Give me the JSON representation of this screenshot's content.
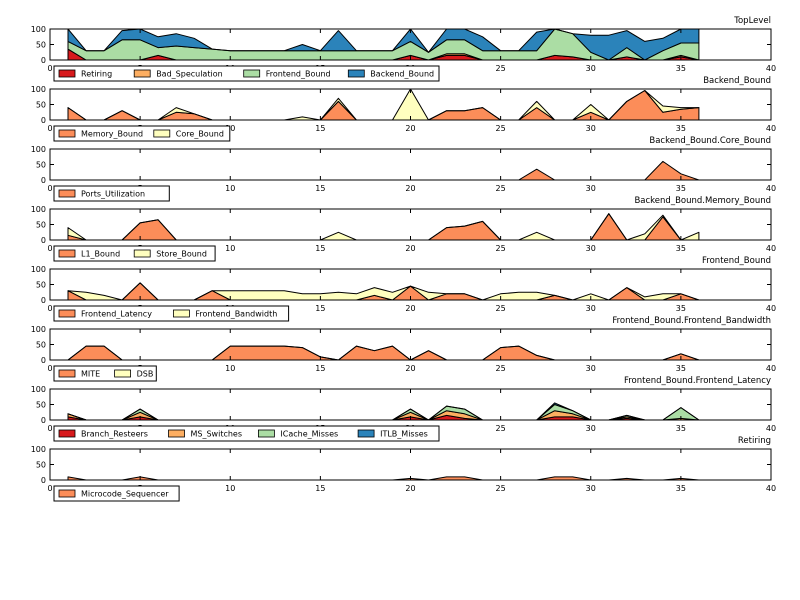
{
  "figure": {
    "x_ticks": [
      0,
      5,
      10,
      15,
      20,
      25,
      30,
      35,
      40
    ],
    "y_ticks": [
      0,
      50,
      100
    ],
    "xlim": [
      0,
      40
    ],
    "ylim": [
      0,
      100
    ]
  },
  "palette": {
    "Retiring": "#d7191c",
    "Bad_Speculation": "#fdae61",
    "Frontend_Bound": "#abdda4",
    "Backend_Bound": "#2b83ba",
    "Memory_Bound": "#fc8d59",
    "Core_Bound": "#ffffbf",
    "Ports_Utilization": "#fc8d59",
    "L1_Bound": "#fc8d59",
    "Store_Bound": "#ffffbf",
    "Frontend_Latency": "#fc8d59",
    "Frontend_Bandwidth": "#ffffbf",
    "MITE": "#fc8d59",
    "DSB": "#ffffbf",
    "Branch_Resteers": "#d7191c",
    "MS_Switches": "#fdae61",
    "ICache_Misses": "#abdda4",
    "ITLB_Misses": "#2b83ba",
    "Microcode_Sequencer": "#fc8d59"
  },
  "chart_data": [
    {
      "type": "area",
      "title": "TopLevel",
      "xlim": [
        0,
        40
      ],
      "ylim": [
        0,
        100
      ],
      "x": [
        1,
        2,
        3,
        4,
        5,
        6,
        7,
        8,
        9,
        10,
        11,
        12,
        13,
        14,
        15,
        16,
        17,
        18,
        19,
        20,
        21,
        22,
        23,
        24,
        25,
        26,
        27,
        28,
        29,
        30,
        31,
        32,
        33,
        34,
        35,
        36
      ],
      "legend_columns": 4,
      "series": [
        {
          "name": "Retiring",
          "values": [
            35,
            0,
            0,
            0,
            0,
            15,
            0,
            0,
            0,
            0,
            0,
            0,
            0,
            0,
            0,
            0,
            0,
            0,
            0,
            15,
            0,
            15,
            15,
            0,
            0,
            0,
            0,
            15,
            10,
            0,
            0,
            10,
            0,
            0,
            10,
            0
          ]
        },
        {
          "name": "Bad_Speculation",
          "values": [
            0,
            0,
            0,
            0,
            0,
            0,
            0,
            0,
            0,
            0,
            0,
            0,
            0,
            0,
            0,
            0,
            0,
            0,
            0,
            0,
            0,
            5,
            5,
            0,
            0,
            0,
            0,
            0,
            0,
            0,
            0,
            0,
            0,
            0,
            5,
            0
          ]
        },
        {
          "name": "Frontend_Bound",
          "values": [
            25,
            30,
            30,
            65,
            65,
            25,
            45,
            40,
            35,
            30,
            30,
            30,
            30,
            30,
            30,
            30,
            30,
            30,
            30,
            45,
            25,
            45,
            45,
            30,
            30,
            30,
            30,
            85,
            75,
            25,
            0,
            30,
            0,
            30,
            40,
            55
          ]
        },
        {
          "name": "Backend_Bound",
          "values": [
            40,
            0,
            0,
            30,
            35,
            35,
            40,
            30,
            0,
            0,
            0,
            0,
            0,
            20,
            0,
            65,
            0,
            0,
            0,
            40,
            0,
            35,
            35,
            45,
            0,
            0,
            60,
            0,
            0,
            55,
            80,
            55,
            60,
            40,
            45,
            45
          ]
        }
      ]
    },
    {
      "type": "area",
      "title": "Backend_Bound",
      "xlim": [
        0,
        40
      ],
      "ylim": [
        0,
        100
      ],
      "x": [
        1,
        2,
        3,
        4,
        5,
        6,
        7,
        8,
        9,
        10,
        11,
        12,
        13,
        14,
        15,
        16,
        17,
        18,
        19,
        20,
        21,
        22,
        23,
        24,
        25,
        26,
        27,
        28,
        29,
        30,
        31,
        32,
        33,
        34,
        35,
        36
      ],
      "legend_columns": 2,
      "series": [
        {
          "name": "Memory_Bound",
          "values": [
            40,
            0,
            0,
            30,
            0,
            0,
            25,
            20,
            0,
            0,
            0,
            0,
            0,
            0,
            0,
            60,
            0,
            0,
            0,
            0,
            0,
            30,
            30,
            40,
            0,
            0,
            40,
            0,
            0,
            25,
            0,
            60,
            95,
            25,
            35,
            40
          ]
        },
        {
          "name": "Core_Bound",
          "values": [
            0,
            0,
            0,
            0,
            0,
            0,
            15,
            0,
            0,
            0,
            0,
            0,
            0,
            10,
            0,
            10,
            0,
            0,
            0,
            100,
            0,
            0,
            0,
            0,
            0,
            0,
            20,
            0,
            0,
            25,
            0,
            0,
            0,
            20,
            5,
            0
          ]
        }
      ]
    },
    {
      "type": "area",
      "title": "Backend_Bound.Core_Bound",
      "xlim": [
        0,
        40
      ],
      "ylim": [
        0,
        100
      ],
      "x": [
        1,
        2,
        3,
        4,
        5,
        6,
        7,
        8,
        9,
        10,
        11,
        12,
        13,
        14,
        15,
        16,
        17,
        18,
        19,
        20,
        21,
        22,
        23,
        24,
        25,
        26,
        27,
        28,
        29,
        30,
        31,
        32,
        33,
        34,
        35,
        36
      ],
      "legend_columns": 1,
      "series": [
        {
          "name": "Ports_Utilization",
          "values": [
            0,
            0,
            0,
            0,
            0,
            0,
            0,
            0,
            0,
            0,
            0,
            0,
            0,
            0,
            0,
            0,
            0,
            0,
            0,
            0,
            0,
            0,
            0,
            0,
            0,
            0,
            35,
            0,
            0,
            0,
            0,
            0,
            0,
            60,
            20,
            0
          ]
        }
      ]
    },
    {
      "type": "area",
      "title": "Backend_Bound.Memory_Bound",
      "xlim": [
        0,
        40
      ],
      "ylim": [
        0,
        100
      ],
      "x": [
        1,
        2,
        3,
        4,
        5,
        6,
        7,
        8,
        9,
        10,
        11,
        12,
        13,
        14,
        15,
        16,
        17,
        18,
        19,
        20,
        21,
        22,
        23,
        24,
        25,
        26,
        27,
        28,
        29,
        30,
        31,
        32,
        33,
        34,
        35,
        36
      ],
      "legend_columns": 2,
      "series": [
        {
          "name": "L1_Bound",
          "values": [
            15,
            0,
            0,
            0,
            55,
            65,
            0,
            0,
            0,
            0,
            0,
            0,
            0,
            0,
            0,
            0,
            0,
            0,
            0,
            0,
            0,
            40,
            45,
            60,
            0,
            0,
            0,
            0,
            0,
            0,
            85,
            0,
            0,
            75,
            0,
            0
          ]
        },
        {
          "name": "Store_Bound",
          "values": [
            25,
            0,
            0,
            0,
            0,
            0,
            0,
            0,
            0,
            0,
            0,
            0,
            0,
            0,
            0,
            25,
            0,
            0,
            0,
            0,
            0,
            0,
            0,
            0,
            0,
            0,
            25,
            0,
            0,
            0,
            0,
            0,
            20,
            5,
            0,
            25
          ]
        }
      ]
    },
    {
      "type": "area",
      "title": "Frontend_Bound",
      "xlim": [
        0,
        40
      ],
      "ylim": [
        0,
        100
      ],
      "x": [
        1,
        2,
        3,
        4,
        5,
        6,
        7,
        8,
        9,
        10,
        11,
        12,
        13,
        14,
        15,
        16,
        17,
        18,
        19,
        20,
        21,
        22,
        23,
        24,
        25,
        26,
        27,
        28,
        29,
        30,
        31,
        32,
        33,
        34,
        35,
        36
      ],
      "legend_columns": 2,
      "series": [
        {
          "name": "Frontend_Latency",
          "values": [
            30,
            0,
            0,
            0,
            55,
            0,
            0,
            0,
            30,
            0,
            0,
            0,
            0,
            0,
            0,
            0,
            0,
            15,
            0,
            45,
            0,
            20,
            20,
            0,
            0,
            0,
            0,
            15,
            0,
            0,
            0,
            40,
            0,
            0,
            20,
            0
          ]
        },
        {
          "name": "Frontend_Bandwidth",
          "values": [
            0,
            25,
            15,
            0,
            0,
            0,
            0,
            0,
            0,
            30,
            30,
            30,
            30,
            20,
            20,
            25,
            20,
            25,
            25,
            0,
            25,
            0,
            0,
            0,
            20,
            25,
            25,
            0,
            0,
            20,
            0,
            0,
            10,
            20,
            0,
            0
          ]
        }
      ]
    },
    {
      "type": "area",
      "title": "Frontend_Bound.Frontend_Bandwidth",
      "xlim": [
        0,
        40
      ],
      "ylim": [
        0,
        100
      ],
      "x": [
        1,
        2,
        3,
        4,
        5,
        6,
        7,
        8,
        9,
        10,
        11,
        12,
        13,
        14,
        15,
        16,
        17,
        18,
        19,
        20,
        21,
        22,
        23,
        24,
        25,
        26,
        27,
        28,
        29,
        30,
        31,
        32,
        33,
        34,
        35,
        36
      ],
      "legend_columns": 2,
      "series": [
        {
          "name": "MITE",
          "values": [
            0,
            45,
            45,
            0,
            0,
            0,
            0,
            0,
            0,
            45,
            45,
            45,
            45,
            40,
            10,
            0,
            45,
            30,
            45,
            0,
            30,
            0,
            0,
            0,
            40,
            45,
            15,
            0,
            0,
            0,
            0,
            0,
            0,
            0,
            20,
            0
          ]
        },
        {
          "name": "DSB",
          "values": [
            0,
            0,
            0,
            0,
            0,
            0,
            0,
            0,
            0,
            0,
            0,
            0,
            0,
            0,
            0,
            0,
            0,
            0,
            0,
            0,
            0,
            0,
            0,
            0,
            0,
            0,
            0,
            0,
            0,
            0,
            0,
            0,
            0,
            0,
            0,
            0
          ]
        }
      ]
    },
    {
      "type": "area",
      "title": "Frontend_Bound.Frontend_Latency",
      "xlim": [
        0,
        40
      ],
      "ylim": [
        0,
        100
      ],
      "x": [
        1,
        2,
        3,
        4,
        5,
        6,
        7,
        8,
        9,
        10,
        11,
        12,
        13,
        14,
        15,
        16,
        17,
        18,
        19,
        20,
        21,
        22,
        23,
        24,
        25,
        26,
        27,
        28,
        29,
        30,
        31,
        32,
        33,
        34,
        35,
        36
      ],
      "legend_columns": 4,
      "series": [
        {
          "name": "Branch_Resteers",
          "values": [
            10,
            0,
            0,
            0,
            10,
            0,
            0,
            0,
            0,
            0,
            0,
            0,
            0,
            0,
            0,
            0,
            0,
            0,
            0,
            10,
            0,
            15,
            5,
            0,
            0,
            0,
            0,
            10,
            10,
            0,
            0,
            5,
            0,
            0,
            0,
            0
          ]
        },
        {
          "name": "MS_Switches",
          "values": [
            10,
            0,
            0,
            0,
            15,
            0,
            0,
            0,
            0,
            0,
            0,
            0,
            0,
            0,
            0,
            0,
            0,
            0,
            0,
            15,
            0,
            15,
            15,
            0,
            0,
            0,
            0,
            20,
            10,
            0,
            0,
            5,
            0,
            0,
            5,
            0
          ]
        },
        {
          "name": "ICache_Misses",
          "values": [
            0,
            0,
            0,
            0,
            10,
            0,
            0,
            0,
            0,
            0,
            0,
            0,
            0,
            0,
            0,
            0,
            0,
            0,
            0,
            10,
            0,
            15,
            15,
            0,
            0,
            0,
            0,
            20,
            10,
            0,
            0,
            5,
            0,
            0,
            35,
            0
          ]
        },
        {
          "name": "ITLB_Misses",
          "values": [
            0,
            0,
            0,
            0,
            0,
            0,
            0,
            0,
            0,
            0,
            0,
            0,
            0,
            0,
            0,
            0,
            0,
            0,
            0,
            0,
            0,
            0,
            0,
            0,
            0,
            0,
            0,
            5,
            0,
            0,
            0,
            0,
            0,
            0,
            0,
            0
          ]
        }
      ]
    },
    {
      "type": "area",
      "title": "Retiring",
      "xlim": [
        0,
        40
      ],
      "ylim": [
        0,
        100
      ],
      "x": [
        1,
        2,
        3,
        4,
        5,
        6,
        7,
        8,
        9,
        10,
        11,
        12,
        13,
        14,
        15,
        16,
        17,
        18,
        19,
        20,
        21,
        22,
        23,
        24,
        25,
        26,
        27,
        28,
        29,
        30,
        31,
        32,
        33,
        34,
        35,
        36
      ],
      "legend_columns": 1,
      "series": [
        {
          "name": "Microcode_Sequencer",
          "values": [
            10,
            0,
            0,
            0,
            10,
            0,
            0,
            0,
            0,
            0,
            0,
            0,
            0,
            0,
            0,
            0,
            0,
            0,
            0,
            5,
            0,
            10,
            10,
            0,
            0,
            0,
            0,
            10,
            10,
            0,
            0,
            5,
            0,
            0,
            5,
            0
          ]
        }
      ]
    }
  ]
}
